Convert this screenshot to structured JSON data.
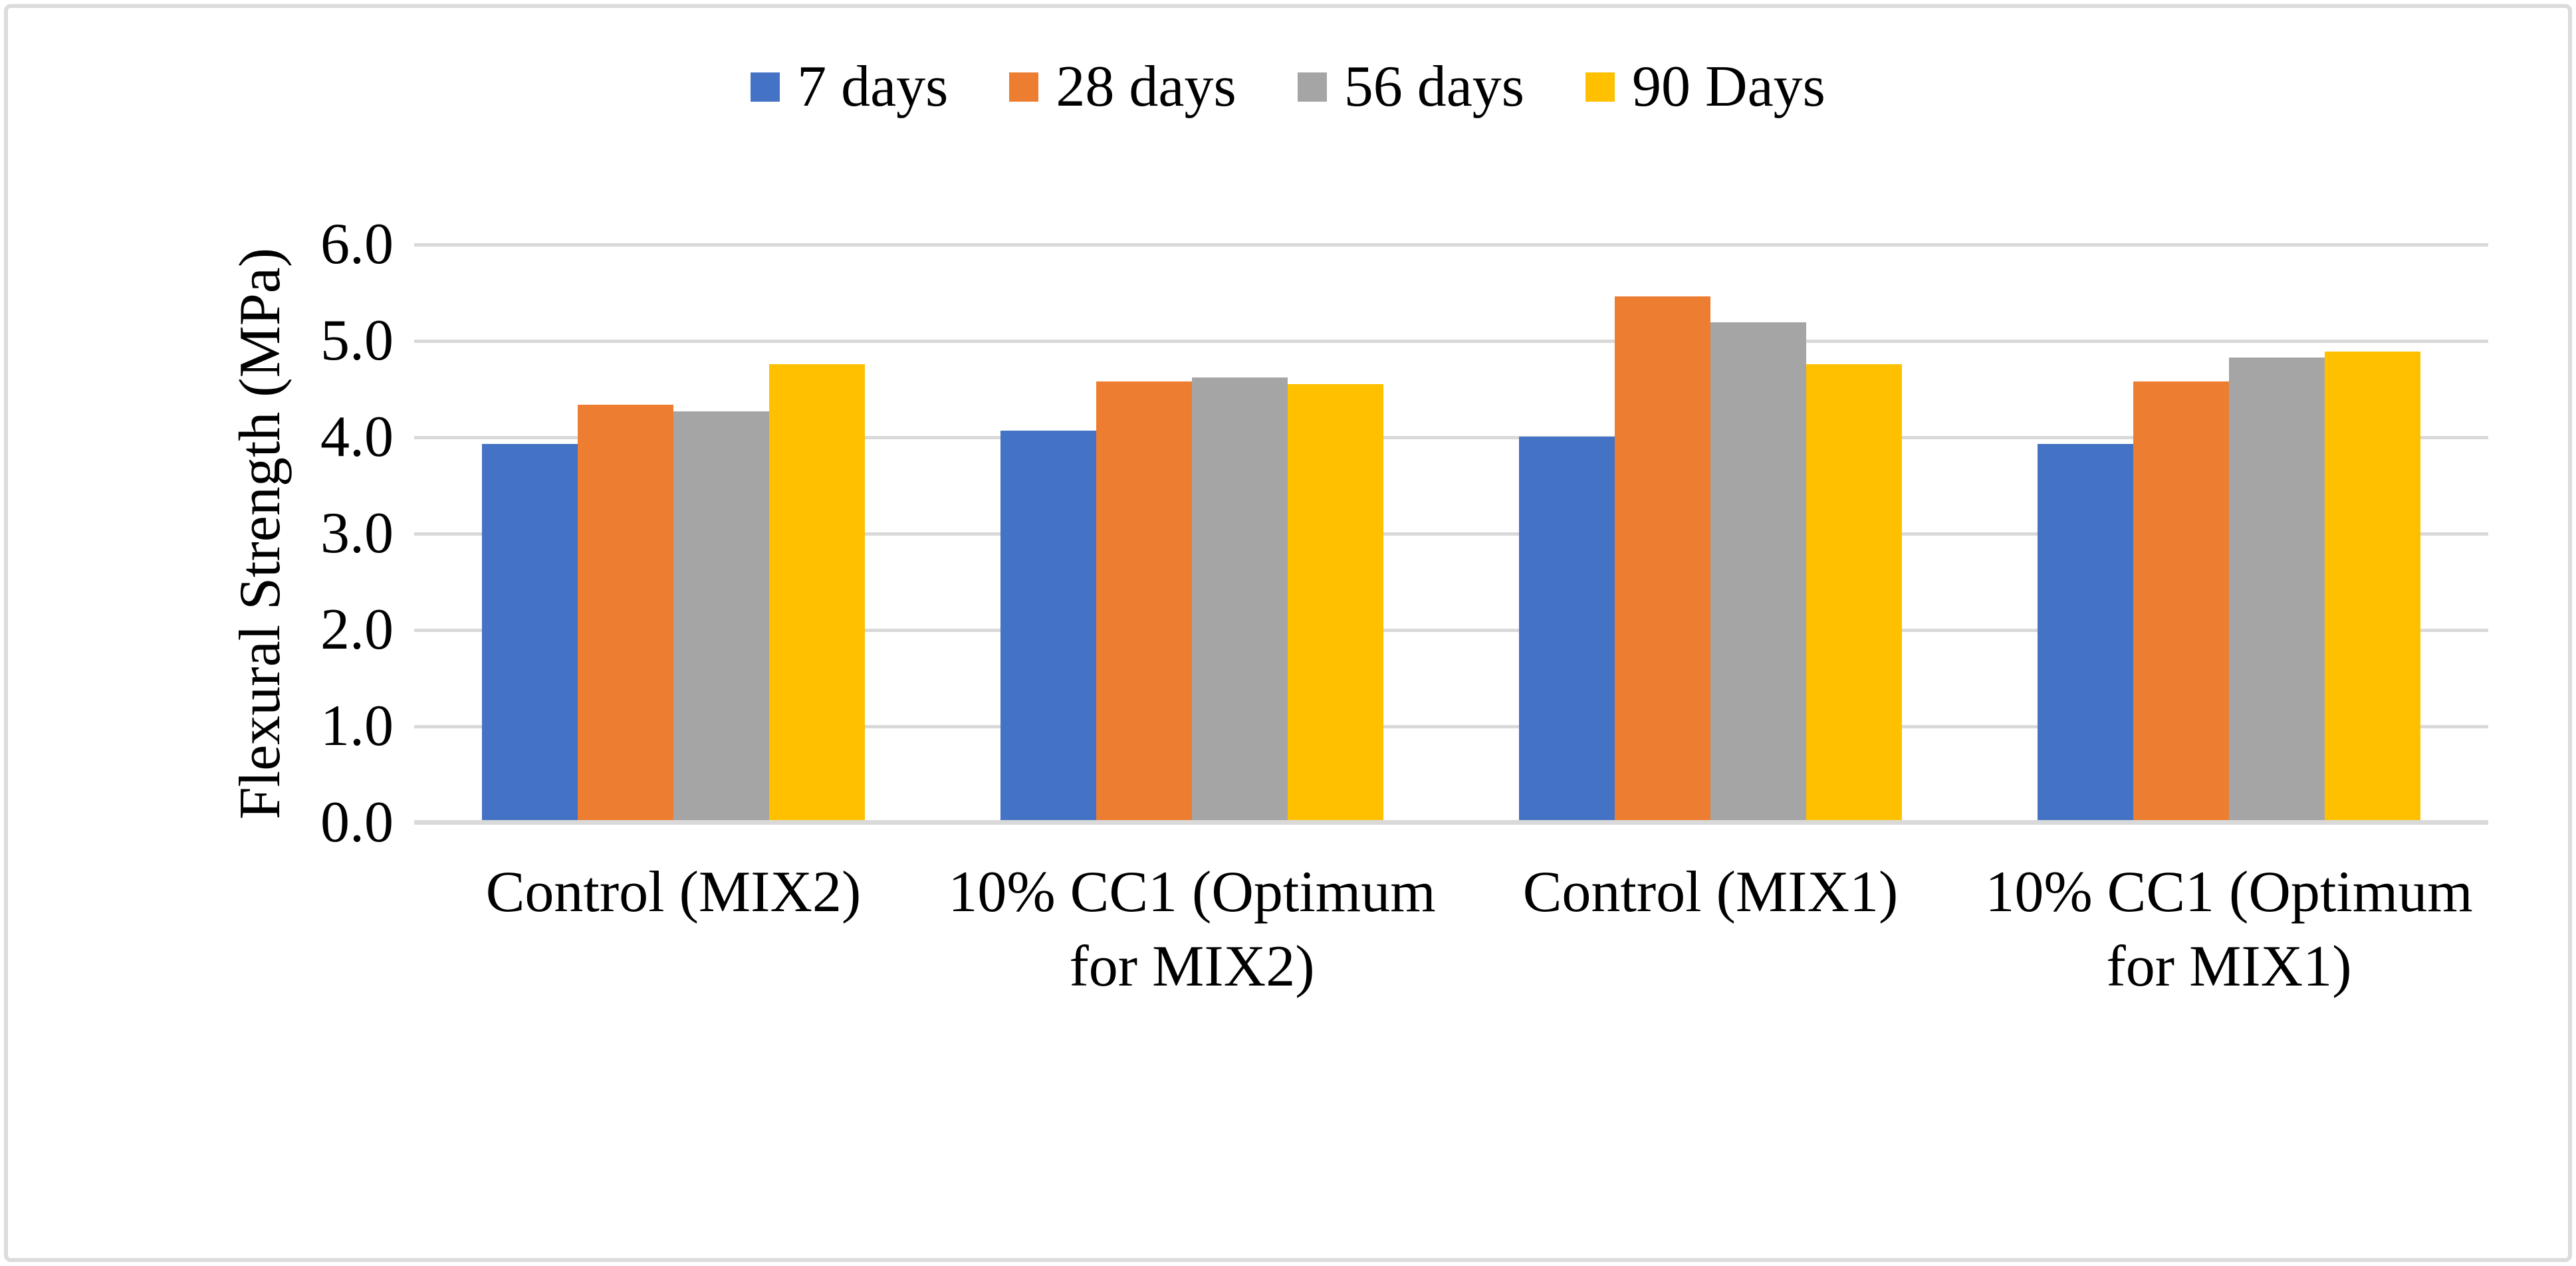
{
  "chart_data": {
    "type": "bar",
    "title": "",
    "xlabel": "",
    "ylabel": "Flexural Strength (MPa)",
    "ylim": [
      0.0,
      6.0
    ],
    "ytick_step": 1.0,
    "yticks": [
      "6.0",
      "5.0",
      "4.0",
      "3.0",
      "2.0",
      "1.0",
      "0.0"
    ],
    "grid": true,
    "legend_position": "top-center",
    "categories": [
      "Control (MIX2)",
      "10% CC1 (Optimum for MIX2)",
      "Control (MIX1)",
      "10% CC1 (Optimum for MIX1)"
    ],
    "series": [
      {
        "name": "7 days",
        "color": "#4472C4",
        "values": [
          3.93,
          4.07,
          4.01,
          3.93
        ]
      },
      {
        "name": "28 days",
        "color": "#ED7D31",
        "values": [
          4.34,
          4.58,
          5.46,
          4.58
        ]
      },
      {
        "name": "56 days",
        "color": "#A5A5A5",
        "values": [
          4.27,
          4.62,
          5.19,
          4.83
        ]
      },
      {
        "name": "90 Days",
        "color": "#FFC000",
        "values": [
          4.76,
          4.55,
          4.76,
          4.89
        ]
      }
    ]
  },
  "colors": {
    "gridline": "#D9D9D9",
    "axis_line": "#D9D9D9",
    "frame_border": "#DCDCDC",
    "background": "#FFFFFF",
    "text": "#000000"
  }
}
